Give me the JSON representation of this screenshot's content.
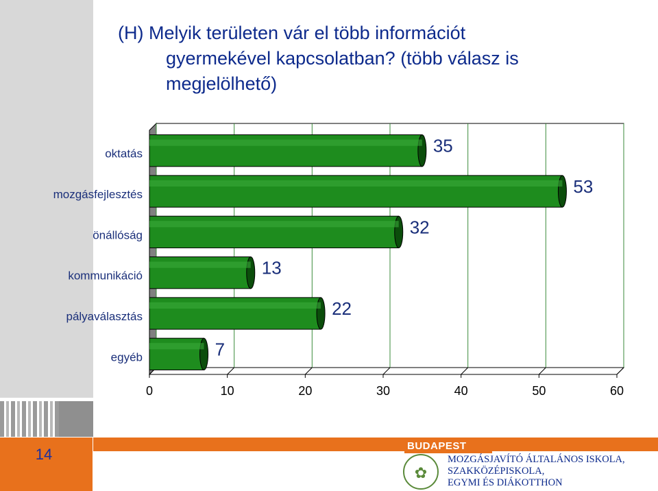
{
  "page": {
    "number": "14"
  },
  "title": {
    "line1": "(H) Melyik területen vár el több információt",
    "line2": "gyermekével kapcsolatban? (több válasz is",
    "line3": "megjelölhető)"
  },
  "chart_data": {
    "type": "bar",
    "orientation": "horizontal",
    "title": "",
    "xlabel": "",
    "ylabel": "",
    "categories": [
      "oktatás",
      "mozgásfejlesztés",
      "önállóság",
      "kommunikáció",
      "pályaválasztás",
      "egyéb"
    ],
    "values": [
      35,
      53,
      32,
      13,
      22,
      7
    ],
    "xlim": [
      0,
      60
    ],
    "xticks": [
      "0",
      "10",
      "20",
      "30",
      "40",
      "50",
      "60"
    ],
    "grid": true,
    "legend": "none",
    "bar_color": "#1e8c1e",
    "bar_dark": "#0b4d0b",
    "style": "3d"
  },
  "footer": {
    "brand": "BUDAPEST",
    "school_lines": [
      "MOZGÁSJAVÍTÓ ÁLTALÁNOS ISKOLA,",
      "SZAKKÖZÉPISKOLA,",
      "EGYMI ÉS DIÁKOTTHON"
    ],
    "seal_icon": "school-seal-icon",
    "accent": "#e8711c"
  }
}
